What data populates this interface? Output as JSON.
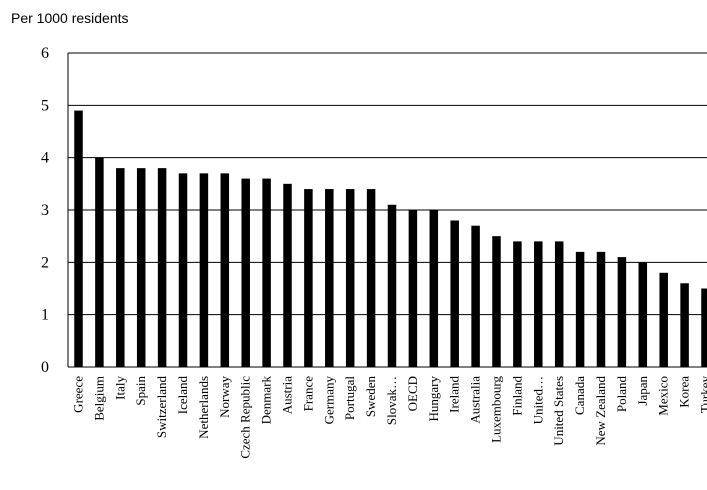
{
  "chart_data": {
    "type": "bar",
    "title": "",
    "unit_label": "Per 1000 residents",
    "xlabel": "",
    "ylabel": "",
    "ylim": [
      0,
      6
    ],
    "yticks": [
      0,
      1,
      2,
      3,
      4,
      5,
      6
    ],
    "grid": true,
    "bar_color": "#000000",
    "categories": [
      "Greece",
      "Belgium",
      "Italy",
      "Spain",
      "Switzerland",
      "Iceland",
      "Netherlands",
      "Norway",
      "Czech Republic",
      "Denmark",
      "Austria",
      "France",
      "Germany",
      "Portugal",
      "Sweden",
      "Slovak…",
      "OECD",
      "Hungary",
      "Ireland",
      "Australia",
      "Luxembourg",
      "Finland",
      "United…",
      "United States",
      "Canada",
      "New Zealand",
      "Poland",
      "Japan",
      "Mexico",
      "Korea",
      "Turkey"
    ],
    "values": [
      4.9,
      4.0,
      3.8,
      3.8,
      3.8,
      3.7,
      3.7,
      3.7,
      3.6,
      3.6,
      3.5,
      3.4,
      3.4,
      3.4,
      3.4,
      3.1,
      3.0,
      3.0,
      2.8,
      2.7,
      2.5,
      2.4,
      2.4,
      2.4,
      2.2,
      2.2,
      2.1,
      2.0,
      1.8,
      1.6,
      1.5
    ]
  }
}
